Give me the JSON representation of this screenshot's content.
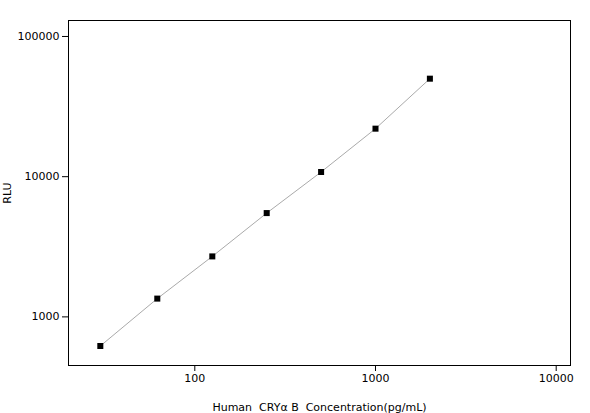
{
  "chart_data": {
    "type": "line",
    "xlabel": "Human  CRYα B  Concentration(pg/mL)",
    "ylabel": "RLU",
    "x": [
      30,
      62,
      125,
      250,
      500,
      1000,
      2000
    ],
    "values": [
      620,
      1350,
      2700,
      5500,
      10800,
      22000,
      50000
    ],
    "color": "#aaaaaa",
    "colors": [
      "black",
      "black",
      "black",
      "black",
      "black",
      "black",
      "black"
    ],
    "marker": "square",
    "line_style": "solid",
    "log": true,
    "xlim": [
      20,
      12000
    ],
    "ylim": [
      450,
      130000
    ],
    "xticks": [
      100,
      1000,
      10000
    ],
    "yticks": [
      1000,
      10000,
      100000
    ],
    "grid": false
  }
}
